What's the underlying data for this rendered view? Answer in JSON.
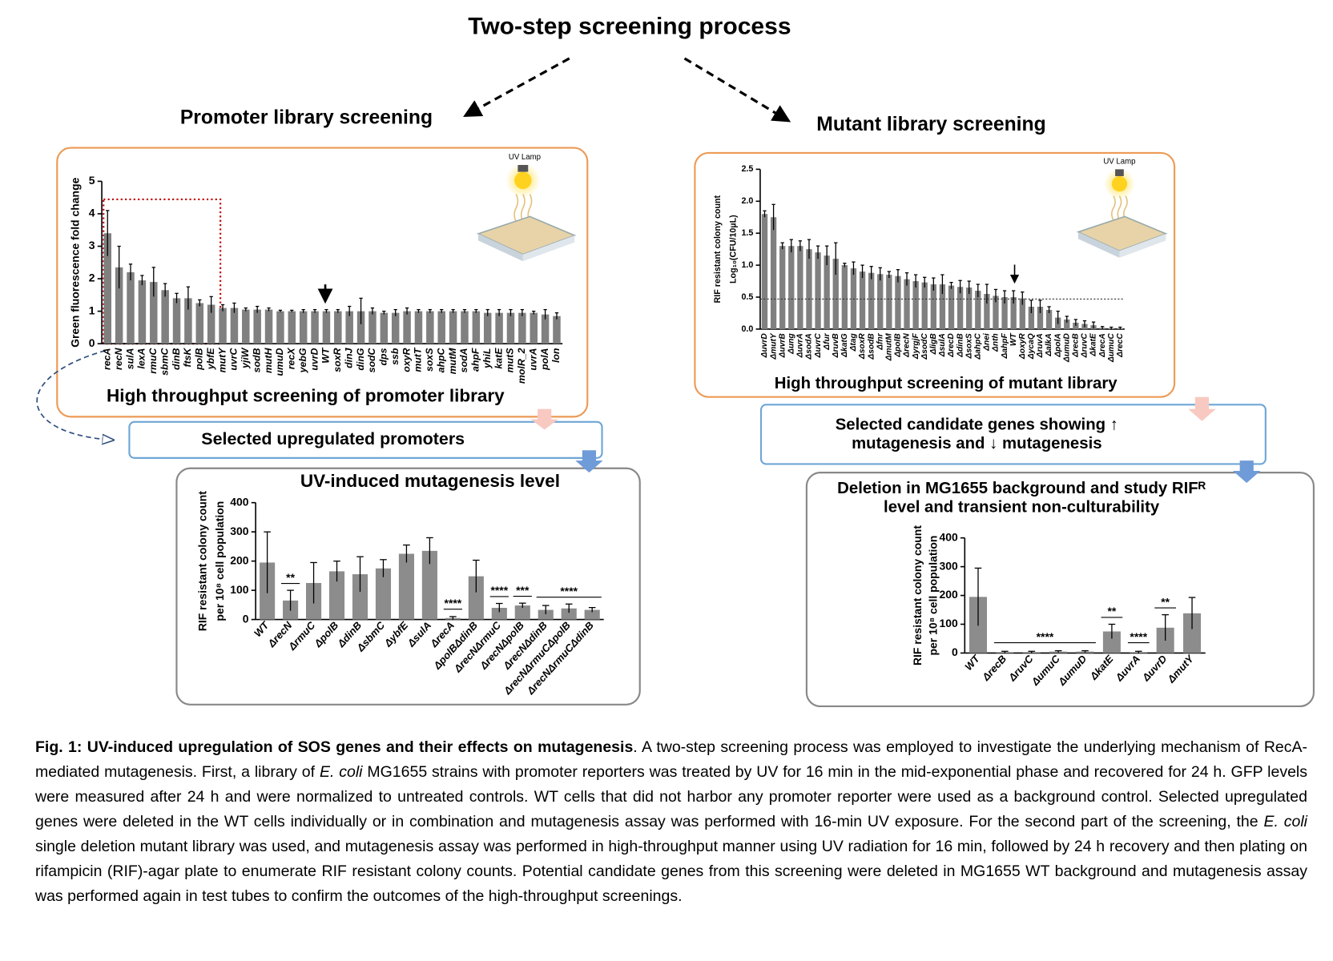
{
  "title": "Two-step screening process",
  "branches": [
    "Promoter library screening",
    "Mutant library screening"
  ],
  "lamp_labels": [
    "UV Lamp",
    "UV Lamp"
  ],
  "boxes": [
    [
      "Selected upregulated promoters"
    ],
    [
      "Selected candidate genes showing ↑",
      "mutagenesis and ↓ mutagenesis"
    ]
  ],
  "chart_data": [
    {
      "type": "bar",
      "title": [
        "High throughput screening of promoter library"
      ],
      "ylabel": [
        "Green fluorescence fold change"
      ],
      "color": "#808080",
      "categories": [
        "recA",
        "recN",
        "sulA",
        "lexA",
        "rmuC",
        "sbmC",
        "dinB",
        "ftsK",
        "polB",
        "ybfE",
        "mutY",
        "uvrC",
        "yjiW",
        "sodB",
        "mutH",
        "umuD",
        "recX",
        "yebG",
        "uvrD",
        "WT",
        "soxR",
        "dinJ",
        "dinG",
        "sodC",
        "dps",
        "ssb",
        "oxyR",
        "mutT",
        "soxS",
        "ahpC",
        "mutM",
        "sodA",
        "ahpF",
        "yhiL",
        "katE",
        "mutS",
        "molR_2",
        "uvrA",
        "polA",
        "lon"
      ],
      "values": [
        3.4,
        2.35,
        2.2,
        1.95,
        1.9,
        1.65,
        1.4,
        1.4,
        1.25,
        1.2,
        1.1,
        1.1,
        1.05,
        1.05,
        1.05,
        1.0,
        1.0,
        1.0,
        1.0,
        1.0,
        1.0,
        1.0,
        1.0,
        1.0,
        0.95,
        0.95,
        1.0,
        1.0,
        1.0,
        1.0,
        1.0,
        1.0,
        1.0,
        0.95,
        0.95,
        0.95,
        0.95,
        0.95,
        0.9,
        0.85
      ],
      "errors": [
        0.7,
        0.65,
        0.25,
        0.15,
        0.45,
        0.2,
        0.15,
        0.35,
        0.1,
        0.25,
        0.1,
        0.15,
        0.05,
        0.1,
        0.05,
        0.03,
        0.03,
        0.05,
        0.05,
        0.05,
        0.05,
        0.15,
        0.4,
        0.1,
        0.05,
        0.1,
        0.1,
        0.05,
        0.05,
        0.05,
        0.05,
        0.05,
        0.05,
        0.1,
        0.1,
        0.1,
        0.1,
        0.05,
        0.15,
        0.1
      ],
      "ylim": [
        0,
        5
      ],
      "yticks": [
        0,
        1,
        2,
        3,
        4,
        5
      ]
    },
    {
      "type": "bar",
      "title": [
        "High throughput screening of mutant library"
      ],
      "ylabel": [
        "RIF resistant colony count",
        "Log₁₀(CFU/10µL)"
      ],
      "color": "#808080",
      "categories": [
        "ΔuvrD",
        "ΔmutY",
        "ΔuvrB",
        "Δung",
        "ΔuvrA",
        "ΔsodA",
        "ΔuvrC",
        "Δfur",
        "ΔruvB",
        "ΔkatG",
        "Δtag",
        "ΔsoxR",
        "ΔsodB",
        "Δfnr",
        "ΔmutM",
        "ΔpolB",
        "ΔrecN",
        "ΔyrgjF",
        "ΔsodC",
        "ΔligB",
        "ΔsulA",
        "ΔrecD",
        "ΔdinB",
        "ΔsoxS",
        "ΔahpC",
        "Δnei",
        "Δnth",
        "ΔahpF",
        "WT",
        "ΔoxyR",
        "ΔycaQ",
        "ΔruvA",
        "ΔalkA",
        "ΔpolA",
        "ΔumuD",
        "ΔrecB",
        "ΔruvC",
        "ΔkatE",
        "ΔrecA",
        "ΔumuC",
        "ΔrecC"
      ],
      "values": [
        1.8,
        1.75,
        1.3,
        1.3,
        1.3,
        1.25,
        1.2,
        1.15,
        1.1,
        1.0,
        0.95,
        0.9,
        0.88,
        0.86,
        0.85,
        0.83,
        0.78,
        0.75,
        0.73,
        0.7,
        0.7,
        0.68,
        0.66,
        0.65,
        0.6,
        0.55,
        0.52,
        0.5,
        0.5,
        0.48,
        0.35,
        0.35,
        0.3,
        0.18,
        0.15,
        0.1,
        0.08,
        0.06,
        0.02,
        0.01,
        0.01
      ],
      "errors": [
        0.05,
        0.2,
        0.05,
        0.1,
        0.08,
        0.15,
        0.1,
        0.15,
        0.25,
        0.03,
        0.1,
        0.1,
        0.1,
        0.1,
        0.05,
        0.1,
        0.1,
        0.1,
        0.08,
        0.1,
        0.15,
        0.05,
        0.1,
        0.1,
        0.1,
        0.15,
        0.1,
        0.1,
        0.1,
        0.1,
        0.1,
        0.1,
        0.05,
        0.1,
        0.05,
        0.05,
        0.05,
        0.05,
        0.02,
        0.02,
        0.02
      ],
      "ylim": [
        0,
        2.5
      ],
      "yticks": [
        {
          "value": 0,
          "label": "0.0"
        },
        {
          "value": 0.5,
          "label": "0.5"
        },
        {
          "value": 1,
          "label": "1.0"
        },
        {
          "value": 1.5,
          "label": "1.5"
        },
        {
          "value": 2,
          "label": "2.0"
        },
        {
          "value": 2.5,
          "label": "2.5"
        }
      ],
      "reference_line": 0.47
    },
    {
      "type": "bar",
      "title": [
        "UV-induced mutagenesis level"
      ],
      "ylabel": [
        "RIF resistant colony count",
        "per 10⁸ cell population"
      ],
      "color": "#8c8c8c",
      "categories": [
        "WT",
        "ΔrecN",
        "ΔrmuC",
        "ΔpolB",
        "ΔdinB",
        "ΔsbmC",
        "ΔybfE",
        "ΔsulA",
        "ΔrecA",
        "ΔpolBΔdinB",
        "ΔrecNΔrmuC",
        "ΔrecNΔpolB",
        "ΔrecNΔdinB",
        "ΔrecNΔrmuCΔpolB",
        "ΔrecNΔrmuCΔdinB"
      ],
      "values": [
        195,
        65,
        125,
        165,
        155,
        175,
        225,
        235,
        5,
        148,
        40,
        48,
        33,
        38,
        33
      ],
      "errors": [
        105,
        35,
        70,
        35,
        60,
        30,
        30,
        45,
        5,
        55,
        15,
        8,
        15,
        15,
        8
      ],
      "ylim": [
        0,
        400
      ],
      "yticks": [
        0,
        100,
        200,
        300,
        400
      ],
      "annotations": [
        "**",
        "****",
        "****",
        "***",
        "****"
      ]
    },
    {
      "type": "bar",
      "title": [
        "Deletion in MG1655 background and study RIFᴿ",
        "level and transient non-culturability"
      ],
      "ylabel": [
        "RIF resistant colony count",
        "per 10⁸ cell population"
      ],
      "color": "#8c8c8c",
      "categories": [
        "WT",
        "ΔrecB",
        "ΔruvC",
        "ΔumuC",
        "ΔumuD",
        "ΔkatE",
        "ΔuvrA",
        "ΔuvrD",
        "ΔmutY"
      ],
      "values": [
        195,
        3,
        3,
        5,
        5,
        75,
        3,
        88,
        138
      ],
      "errors": [
        100,
        3,
        3,
        3,
        3,
        25,
        3,
        45,
        55
      ],
      "ylim": [
        0,
        400
      ],
      "yticks": [
        0,
        100,
        200,
        300,
        400
      ],
      "annotations": [
        "****",
        "**",
        "****",
        "**"
      ]
    }
  ],
  "caption": {
    "label": "Fig. 1: UV-induced upregulation of SOS genes and their effects on mutagenesis",
    "parts": [
      ". A two-step screening process was employed to investigate the underlying mechanism of RecA-mediated mutagenesis. First, a library of ",
      "E. coli",
      " MG1655 strains with promoter reporters was treated by UV for 16 min in the mid-exponential phase and recovered for 24 h. GFP levels were measured after 24 h and were normalized to untreated controls. WT cells that did not harbor any promoter reporter were used as a background control. Selected upregulated genes were deleted in the WT cells individually or in combination and mutagenesis assay was performed with 16-min UV exposure. For the second part of the screening, the ",
      "E. coli",
      " single deletion mutant library was used, and mutagenesis assay was performed in high-throughput manner using UV radiation for 16 min, followed by 24 h recovery and then plating on rifampicin (RIF)-agar plate to enumerate RIF resistant colony counts. Potential candidate genes from this screening were deleted in MG1655 WT background and mutagenesis assay was performed again in test tubes to confirm the outcomes of the high-throughput screenings."
    ]
  }
}
